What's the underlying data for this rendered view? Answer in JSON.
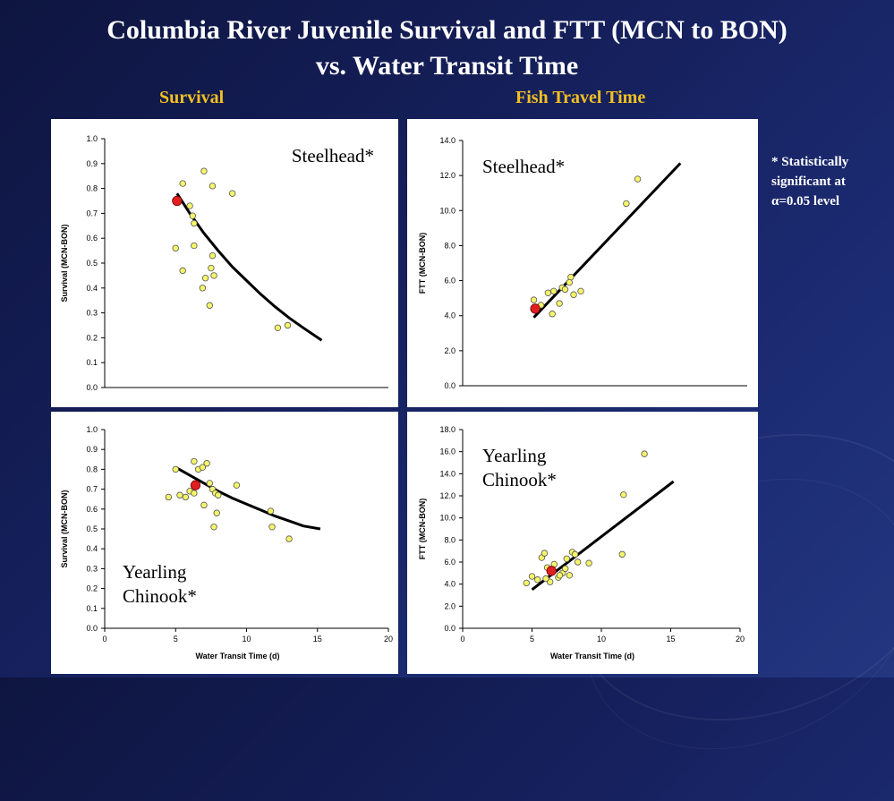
{
  "slide": {
    "title_line1": "Columbia River Juvenile Survival  and FTT (MCN to BON)",
    "title_line2": "vs. Water Transit Time",
    "section_left": "Survival",
    "section_right": "Fish Travel Time",
    "note_line1": "* Statistically",
    "note_line2": "significant at",
    "note_line3": "α=0.05 level"
  },
  "colors": {
    "point_fill": "#f5f56a",
    "highlight_fill": "#e02020",
    "curve": "#000000",
    "title_text": "#ffffff",
    "section_text": "#f3c021"
  },
  "chart_data": [
    {
      "id": "steelhead-survival",
      "type": "scatter",
      "label_lines": [
        "Steelhead*"
      ],
      "label_pos": "top-right",
      "ylabel": "Survival (MCN-BON)",
      "xlabel": "",
      "show_x_ticks": false,
      "xlim": [
        0,
        20
      ],
      "ylim": [
        0,
        1
      ],
      "yticks": [
        "0.0",
        "0.1",
        "0.2",
        "0.3",
        "0.4",
        "0.5",
        "0.6",
        "0.7",
        "0.8",
        "0.9",
        "1.0"
      ],
      "xticks": [],
      "points": [
        [
          5.5,
          0.82
        ],
        [
          6.0,
          0.73
        ],
        [
          6.2,
          0.69
        ],
        [
          6.3,
          0.66
        ],
        [
          7.0,
          0.87
        ],
        [
          7.6,
          0.81
        ],
        [
          9.0,
          0.78
        ],
        [
          5.0,
          0.56
        ],
        [
          5.5,
          0.47
        ],
        [
          6.3,
          0.57
        ],
        [
          7.1,
          0.44
        ],
        [
          6.9,
          0.4
        ],
        [
          7.5,
          0.48
        ],
        [
          7.6,
          0.53
        ],
        [
          7.7,
          0.45
        ],
        [
          7.4,
          0.33
        ],
        [
          12.2,
          0.24
        ],
        [
          12.9,
          0.25
        ]
      ],
      "highlight": [
        5.1,
        0.75
      ],
      "fit": [
        [
          5.1,
          0.78
        ],
        [
          6,
          0.7
        ],
        [
          7,
          0.62
        ],
        [
          8,
          0.55
        ],
        [
          9,
          0.485
        ],
        [
          10,
          0.43
        ],
        [
          11,
          0.375
        ],
        [
          12,
          0.325
        ],
        [
          13,
          0.28
        ],
        [
          14,
          0.24
        ],
        [
          15.3,
          0.19
        ]
      ]
    },
    {
      "id": "steelhead-ftt",
      "type": "scatter",
      "label_lines": [
        "Steelhead*"
      ],
      "label_pos": "top-left",
      "ylabel": "FTT (MCN-BON)",
      "xlabel": "",
      "show_x_ticks": false,
      "xlim": [
        0,
        20
      ],
      "ylim": [
        0,
        14
      ],
      "yticks": [
        "0.0",
        "2.0",
        "4.0",
        "6.0",
        "8.0",
        "10.0",
        "12.0",
        "14.0"
      ],
      "xticks": [],
      "points": [
        [
          5.0,
          4.9
        ],
        [
          5.5,
          4.6
        ],
        [
          6.0,
          5.3
        ],
        [
          6.3,
          4.1
        ],
        [
          6.4,
          5.4
        ],
        [
          7.0,
          5.6
        ],
        [
          7.2,
          5.5
        ],
        [
          7.6,
          6.2
        ],
        [
          8.3,
          5.4
        ],
        [
          7.8,
          5.2
        ],
        [
          7.5,
          5.9
        ],
        [
          6.8,
          4.7
        ],
        [
          11.5,
          10.4
        ],
        [
          12.3,
          11.8
        ]
      ],
      "highlight": [
        5.1,
        4.4
      ],
      "fit": [
        [
          5,
          3.9
        ],
        [
          15.3,
          12.7
        ]
      ]
    },
    {
      "id": "chinook-survival",
      "type": "scatter",
      "label_lines": [
        "Yearling",
        "Chinook*"
      ],
      "label_pos": "bottom-left",
      "ylabel": "Survival (MCN-BON)",
      "xlabel": "Water Transit Time (d)",
      "show_x_ticks": true,
      "xlim": [
        0,
        20
      ],
      "ylim": [
        0,
        1
      ],
      "yticks": [
        "0.0",
        "0.1",
        "0.2",
        "0.3",
        "0.4",
        "0.5",
        "0.6",
        "0.7",
        "0.8",
        "0.9",
        "1.0"
      ],
      "xticks": [
        "0",
        "5",
        "10",
        "15",
        "20"
      ],
      "points": [
        [
          4.5,
          0.66
        ],
        [
          5.0,
          0.8
        ],
        [
          5.3,
          0.67
        ],
        [
          5.7,
          0.66
        ],
        [
          6.3,
          0.84
        ],
        [
          6.6,
          0.8
        ],
        [
          6.9,
          0.81
        ],
        [
          7.2,
          0.83
        ],
        [
          7.4,
          0.73
        ],
        [
          7.6,
          0.7
        ],
        [
          7.8,
          0.68
        ],
        [
          8.0,
          0.67
        ],
        [
          7.0,
          0.62
        ],
        [
          7.7,
          0.51
        ],
        [
          7.9,
          0.58
        ],
        [
          9.3,
          0.72
        ],
        [
          11.7,
          0.59
        ],
        [
          11.8,
          0.51
        ],
        [
          13.0,
          0.45
        ],
        [
          6.0,
          0.69
        ],
        [
          6.3,
          0.68
        ]
      ],
      "highlight": [
        6.4,
        0.72
      ],
      "fit": [
        [
          5,
          0.81
        ],
        [
          6,
          0.77
        ],
        [
          7,
          0.73
        ],
        [
          8,
          0.69
        ],
        [
          9,
          0.655
        ],
        [
          10,
          0.625
        ],
        [
          11,
          0.595
        ],
        [
          12,
          0.565
        ],
        [
          13,
          0.54
        ],
        [
          14,
          0.515
        ],
        [
          15.2,
          0.5
        ]
      ]
    },
    {
      "id": "chinook-ftt",
      "type": "scatter",
      "label_lines": [
        "Yearling",
        "Chinook*"
      ],
      "label_pos": "top-left",
      "ylabel": "FTT (MCN-BON)",
      "xlabel": "Water Transit Time (d)",
      "show_x_ticks": true,
      "xlim": [
        0,
        20
      ],
      "ylim": [
        0,
        18
      ],
      "yticks": [
        "0.0",
        "2.0",
        "4.0",
        "6.0",
        "8.0",
        "10.0",
        "12.0",
        "14.0",
        "16.0",
        "18.0"
      ],
      "xticks": [
        "0",
        "5",
        "10",
        "15",
        "20"
      ],
      "points": [
        [
          4.6,
          4.1
        ],
        [
          5.0,
          4.7
        ],
        [
          5.4,
          4.4
        ],
        [
          5.7,
          6.4
        ],
        [
          5.9,
          6.8
        ],
        [
          6.1,
          5.5
        ],
        [
          6.3,
          4.2
        ],
        [
          6.6,
          5.8
        ],
        [
          6.9,
          4.6
        ],
        [
          7.2,
          5.0
        ],
        [
          7.5,
          6.3
        ],
        [
          7.7,
          4.8
        ],
        [
          7.9,
          6.9
        ],
        [
          8.1,
          6.7
        ],
        [
          7.4,
          5.4
        ],
        [
          7.0,
          4.8
        ],
        [
          9.1,
          5.9
        ],
        [
          11.5,
          6.7
        ],
        [
          11.6,
          12.1
        ],
        [
          13.1,
          15.8
        ],
        [
          6.0,
          4.5
        ],
        [
          8.3,
          6.0
        ]
      ],
      "highlight": [
        6.4,
        5.2
      ],
      "fit": [
        [
          5,
          3.5
        ],
        [
          15.2,
          13.3
        ]
      ]
    }
  ]
}
